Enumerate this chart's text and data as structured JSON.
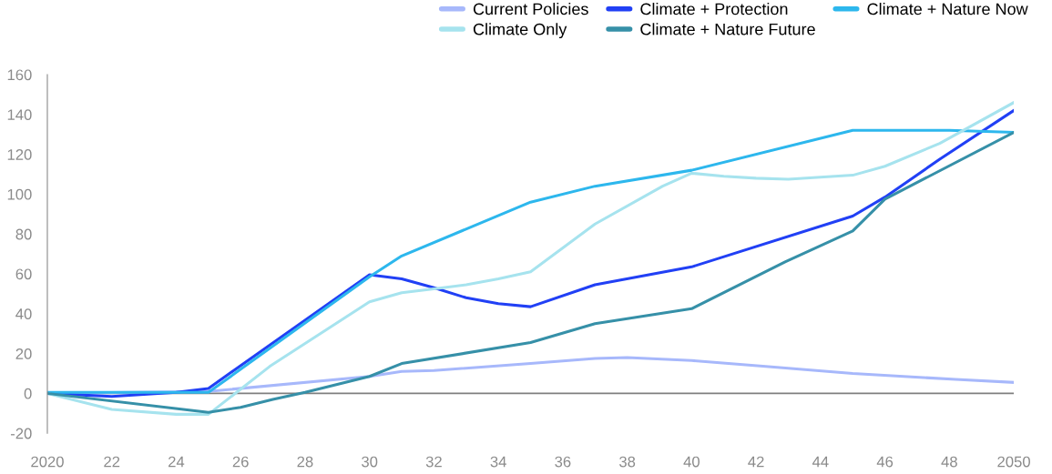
{
  "chart_data": {
    "type": "line",
    "ylim": [
      -20,
      160
    ],
    "yticks": [
      -20,
      0,
      20,
      40,
      60,
      80,
      100,
      120,
      140,
      160
    ],
    "xlim": [
      2020,
      2050
    ],
    "xticks": [
      2020,
      {
        "value": 2022,
        "label": "22"
      },
      {
        "value": 2024,
        "label": "24"
      },
      {
        "value": 2026,
        "label": "26"
      },
      {
        "value": 2028,
        "label": "28"
      },
      {
        "value": 2030,
        "label": "30"
      },
      {
        "value": 2032,
        "label": "32"
      },
      {
        "value": 2034,
        "label": "34"
      },
      {
        "value": 2036,
        "label": "36"
      },
      {
        "value": 2038,
        "label": "38"
      },
      {
        "value": 2040,
        "label": "40"
      },
      {
        "value": 2042,
        "label": "42"
      },
      {
        "value": 2044,
        "label": "44"
      },
      {
        "value": 2046,
        "label": "46"
      },
      {
        "value": 2048,
        "label": "48"
      },
      2050
    ],
    "grid": false,
    "legend": "top right",
    "marker": "none",
    "line_style": "solid",
    "ref_lines": [
      {
        "axis": "y",
        "value": 0,
        "color": "#7f7f7f"
      }
    ],
    "series": [
      {
        "name": "Current Policies",
        "color": "#a7b8fb",
        "x": [
          2020,
          2025,
          2030,
          2031,
          2032,
          2035,
          2037,
          2038,
          2040,
          2042.3,
          2045,
          2048.2,
          2050
        ],
        "values": [
          0,
          1,
          8.5,
          11,
          11.5,
          15,
          17.5,
          18,
          16.5,
          13.5,
          10,
          7,
          5.5
        ]
      },
      {
        "name": "Climate + Protection",
        "color": "#2140f5",
        "x": [
          2020,
          2022,
          2024,
          2025,
          2030,
          2031,
          2032,
          2033,
          2034,
          2035,
          2037,
          2040,
          2045,
          2046,
          2047.7,
          2050
        ],
        "values": [
          0,
          -1.5,
          0.5,
          2.5,
          59.5,
          57.5,
          53,
          48,
          45,
          43.5,
          54.5,
          63.5,
          89,
          98.5,
          117.5,
          142
        ]
      },
      {
        "name": "Climate + Nature Now",
        "color": "#2db7ed",
        "x": [
          2020,
          2025,
          2030,
          2031,
          2035,
          2037,
          2040,
          2045,
          2048,
          2050
        ],
        "values": [
          0.5,
          0.5,
          58.5,
          69,
          96,
          104,
          112,
          132,
          132,
          131
        ]
      },
      {
        "name": "Climate Only",
        "color": "#a6e3ee",
        "x": [
          2020,
          2022,
          2024,
          2025,
          2026.9,
          2030,
          2031,
          2032,
          2033,
          2034,
          2035,
          2037,
          2039.1,
          2040,
          2041,
          2042,
          2043,
          2045,
          2046,
          2047.7,
          2050
        ],
        "values": [
          0,
          -8,
          -10.5,
          -10.5,
          13.5,
          46,
          50.5,
          52.5,
          54.5,
          57.5,
          61,
          85,
          104,
          110.5,
          109,
          108,
          107.5,
          109.5,
          114,
          125.5,
          146
        ]
      },
      {
        "name": "Climate + Nature Future",
        "color": "#3690a8",
        "x": [
          2020,
          2025,
          2026,
          2027,
          2028,
          2029,
          2030,
          2031,
          2035,
          2037,
          2040,
          2042.9,
          2045,
          2046,
          2050
        ],
        "values": [
          0,
          -9.5,
          -7,
          -3,
          0.5,
          4.5,
          8.5,
          15,
          25.5,
          35,
          42.5,
          66,
          81.5,
          97.5,
          131
        ]
      }
    ]
  }
}
